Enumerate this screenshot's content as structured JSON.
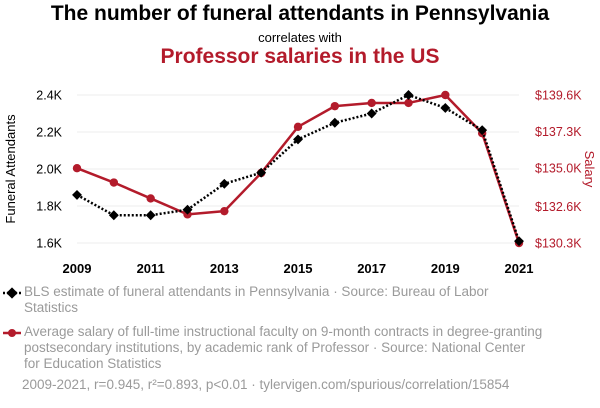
{
  "header": {
    "title": "The number of funeral attendants in Pennsylvania",
    "subtitle": "correlates with",
    "title2": "Professor salaries in the US"
  },
  "colors": {
    "series1": "#000000",
    "series2": "#b31b2b",
    "grid": "#eeeeee",
    "muted_text": "#9a9a9a"
  },
  "chart_data": {
    "type": "line",
    "x": [
      2009,
      2010,
      2011,
      2012,
      2013,
      2014,
      2015,
      2016,
      2017,
      2018,
      2019,
      2020,
      2021
    ],
    "x_ticks": [
      "2009",
      "2011",
      "2013",
      "2015",
      "2017",
      "2019",
      "2021"
    ],
    "series": [
      {
        "name": "Funeral Attendants",
        "axis": "left",
        "values": [
          1860,
          1750,
          1750,
          1780,
          1920,
          1980,
          2160,
          2250,
          2300,
          2400,
          2330,
          2210,
          1610
        ]
      },
      {
        "name": "Salary",
        "axis": "right",
        "values": [
          135000,
          134100,
          133100,
          132100,
          132300,
          134700,
          137600,
          138900,
          139100,
          139100,
          139600,
          137200,
          130300
        ]
      }
    ],
    "left_axis": {
      "label": "Funeral Attendants",
      "ylim": [
        1600,
        2400
      ],
      "ticks": [
        1600,
        1800,
        2000,
        2200,
        2400
      ],
      "tick_labels": [
        "1.6K",
        "1.8K",
        "2.0K",
        "2.2K",
        "2.4K"
      ]
    },
    "right_axis": {
      "label": "Salary",
      "ylim": [
        130300,
        139600
      ],
      "ticks": [
        130300,
        132600,
        135000,
        137300,
        139600
      ],
      "tick_labels": [
        "$130.3K",
        "$132.6K",
        "$135.0K",
        "$137.3K",
        "$139.6K"
      ]
    },
    "grid": true
  },
  "legend": {
    "series1": "BLS estimate of funeral attendants in Pennsylvania · Source: Bureau of Labor Statistics",
    "series2": "Average salary of full-time instructional faculty on 9-month contracts in degree-granting postsecondary institutions, by academic rank of Professor · Source: National Center for Education Statistics"
  },
  "footer": "2009-2021, r=0.945, r²=0.893, p<0.01 · tylervigen.com/spurious/correlation/15854"
}
